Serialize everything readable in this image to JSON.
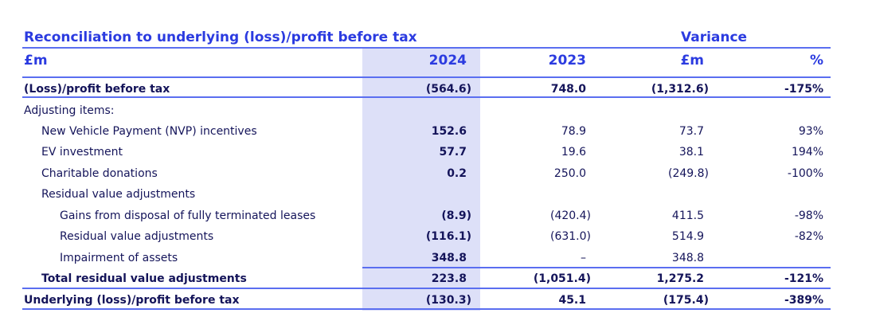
{
  "title": "Reconciliation to underlying (loss)/profit before tax",
  "variance_label": "Variance",
  "headers": {
    "unit": "£m",
    "y2024": "2024",
    "y2023": "2023",
    "var_m": "£m",
    "var_pct": "%"
  },
  "rows": [
    {
      "label": "(Loss)/profit before tax",
      "v2024": "(564.6)",
      "v2023": "748.0",
      "var_m": "(1,312.6)",
      "var_pct": "-175%"
    },
    {
      "label": "Adjusting items:",
      "v2024": "",
      "v2023": "",
      "var_m": "",
      "var_pct": ""
    },
    {
      "label": "New Vehicle Payment (NVP) incentives",
      "v2024": "152.6",
      "v2023": "78.9",
      "var_m": "73.7",
      "var_pct": "93%"
    },
    {
      "label": "EV investment",
      "v2024": "57.7",
      "v2023": "19.6",
      "var_m": "38.1",
      "var_pct": "194%"
    },
    {
      "label": "Charitable donations",
      "v2024": "0.2",
      "v2023": "250.0",
      "var_m": "(249.8)",
      "var_pct": "-100%"
    },
    {
      "label": "Residual value adjustments",
      "v2024": "",
      "v2023": "",
      "var_m": "",
      "var_pct": ""
    },
    {
      "label": "Gains from disposal of fully terminated leases",
      "v2024": "(8.9)",
      "v2023": "(420.4)",
      "var_m": "411.5",
      "var_pct": "-98%"
    },
    {
      "label": "Residual value adjustments",
      "v2024": "(116.1)",
      "v2023": "(631.0)",
      "var_m": "514.9",
      "var_pct": "-82%"
    },
    {
      "label": "Impairment of assets",
      "v2024": "348.8",
      "v2023": "–",
      "var_m": "348.8",
      "var_pct": ""
    },
    {
      "label": "Total residual value adjustments",
      "v2024": "223.8",
      "v2023": "(1,051.4)",
      "var_m": "1,275.2",
      "var_pct": "-121%"
    },
    {
      "label": "Underlying (loss)/profit before tax",
      "v2024": "(130.3)",
      "v2023": "45.1",
      "var_m": "(175.4)",
      "var_pct": "-389%"
    }
  ]
}
